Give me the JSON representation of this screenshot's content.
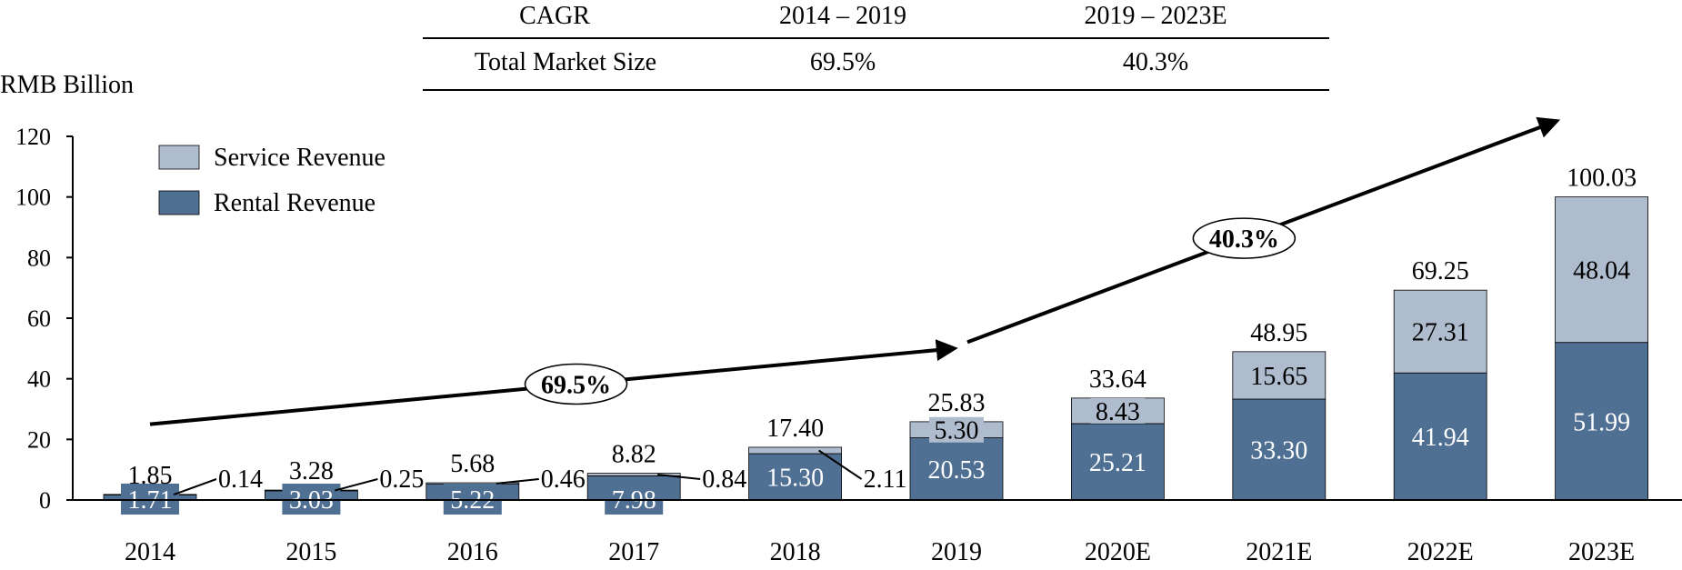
{
  "cagr_table": {
    "header": [
      "CAGR",
      "2014 – 2019",
      "2019 – 2023E"
    ],
    "rows": [
      [
        "Total Market Size",
        "69.5%",
        "40.3%"
      ]
    ]
  },
  "chart_data": {
    "type": "bar",
    "stacked": true,
    "ylabel": "RMB Billion",
    "ylim": [
      0,
      120
    ],
    "yticks": [
      0,
      20,
      40,
      60,
      80,
      100,
      120
    ],
    "categories": [
      "2014",
      "2015",
      "2016",
      "2017",
      "2018",
      "2019",
      "2020E",
      "2021E",
      "2022E",
      "2023E"
    ],
    "series": [
      {
        "name": "Rental Revenue",
        "color": "#4F6F93",
        "values": [
          1.71,
          3.03,
          5.22,
          7.98,
          15.3,
          20.53,
          25.21,
          33.3,
          41.94,
          51.99
        ],
        "labels": [
          "1.71",
          "3.03",
          "5.22",
          "7.98",
          "15.30",
          "20.53",
          "25.21",
          "33.30",
          "41.94",
          "51.99"
        ]
      },
      {
        "name": "Service Revenue",
        "color": "#AEBCCE",
        "values": [
          0.14,
          0.25,
          0.46,
          0.84,
          2.11,
          5.3,
          8.43,
          15.65,
          27.31,
          48.04
        ],
        "labels": [
          "0.14",
          "0.25",
          "0.46",
          "0.84",
          "2.11",
          "5.30",
          "8.43",
          "15.65",
          "27.31",
          "48.04"
        ]
      }
    ],
    "totals": [
      1.85,
      3.28,
      5.68,
      8.82,
      17.4,
      25.83,
      33.64,
      48.95,
      69.25,
      100.03
    ],
    "total_labels": [
      "1.85",
      "3.28",
      "5.68",
      "8.82",
      "17.40",
      "25.83",
      "33.64",
      "48.95",
      "69.25",
      "100.03"
    ],
    "legend_position": "top-left",
    "annotations": [
      {
        "text": "69.5%",
        "from_category": "2014",
        "to_category": "2019",
        "y_start": 25,
        "y_end": 50
      },
      {
        "text": "40.3%",
        "from_category": "2019",
        "to_category": "2023E",
        "y_start": 50,
        "y_end": 125
      }
    ],
    "colors": {
      "axis": "#000000",
      "text": "#000000",
      "bar_label_light": "#ffffff"
    }
  }
}
